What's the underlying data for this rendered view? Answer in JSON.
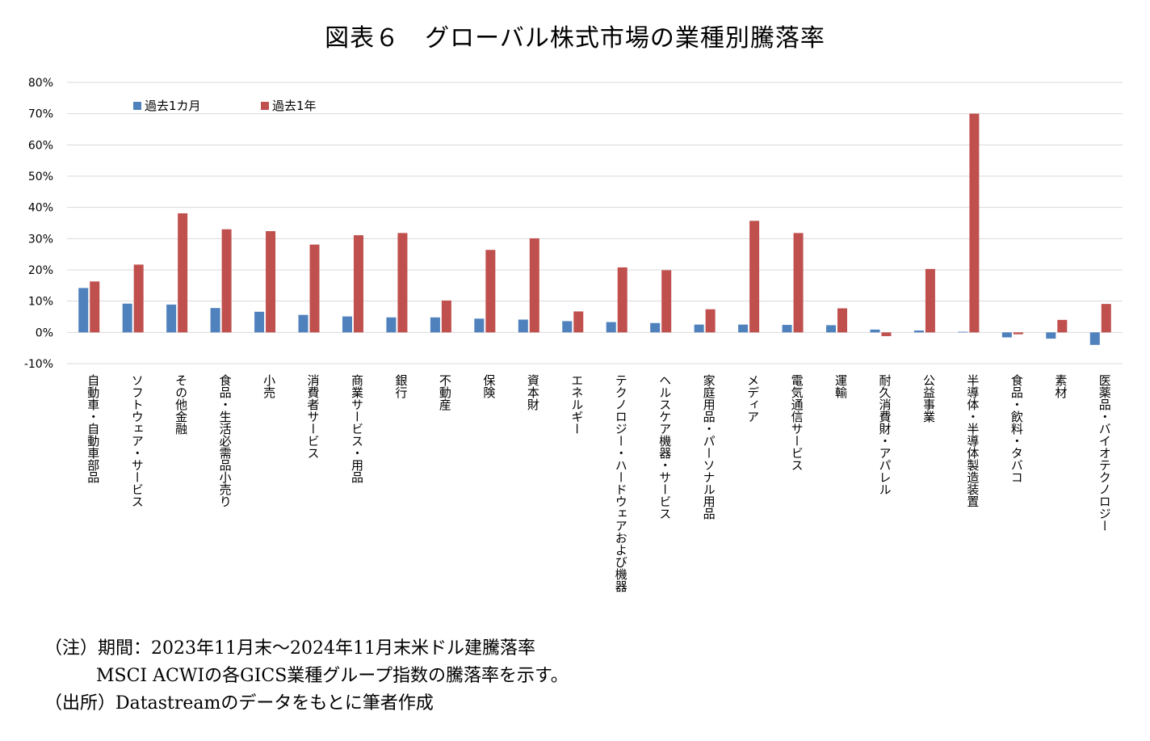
{
  "title": "図表６　グローバル株式市場の業種別騰落率",
  "notes": {
    "line1": "（注）期間：2023年11月末～2024年11月末米ドル建騰落率",
    "line2": "MSCI ACWIの各GICS業種グループ指数の騰落率を示す。",
    "line3": "（出所）Datastreamのデータをもとに筆者作成"
  },
  "chart_data": {
    "type": "bar",
    "title": "",
    "xlabel": "",
    "ylabel": "",
    "ylim": [
      -10,
      80
    ],
    "yticks": [
      -10,
      0,
      10,
      20,
      30,
      40,
      50,
      60,
      70,
      80
    ],
    "ytick_labels": [
      "-10%",
      "0%",
      "10%",
      "20%",
      "30%",
      "40%",
      "50%",
      "60%",
      "70%",
      "80%"
    ],
    "grid": true,
    "legend_position": "top-left",
    "categories": [
      "自動車・自動車部品",
      "ソフトウェア・サービス",
      "その他金融",
      "食品・生活必需品小売り",
      "小売",
      "消費者サービス",
      "商業サービス・用品",
      "銀行",
      "不動産",
      "保険",
      "資本財",
      "エネルギー",
      "テクノロジー・ハードウェアおよび機器",
      "ヘルスケア機器・サービス",
      "家庭用品・パーソナル用品",
      "メディア",
      "電気通信サービス",
      "運輸",
      "耐久消費財・アパレル",
      "公益事業",
      "半導体・半導体製造装置",
      "食品・飲料・タバコ",
      "素材",
      "医薬品・バイオテクノロジー"
    ],
    "series": [
      {
        "name": "過去1カ月",
        "color": "#4f81bd",
        "values": [
          14.2,
          9.2,
          8.9,
          7.8,
          6.6,
          5.6,
          5.1,
          4.8,
          4.8,
          4.4,
          4.1,
          3.6,
          3.3,
          3.0,
          2.5,
          2.5,
          2.4,
          2.3,
          0.9,
          0.6,
          0.2,
          -1.6,
          -2.0,
          -4.0
        ]
      },
      {
        "name": "過去1年",
        "color": "#c0504d",
        "values": [
          16.3,
          21.7,
          38.1,
          33.0,
          32.4,
          28.1,
          31.1,
          31.8,
          10.2,
          26.4,
          30.1,
          6.7,
          20.8,
          19.9,
          7.4,
          35.7,
          31.8,
          7.7,
          -1.2,
          20.3,
          70.0,
          -0.6,
          4.0,
          9.1
        ]
      }
    ]
  }
}
